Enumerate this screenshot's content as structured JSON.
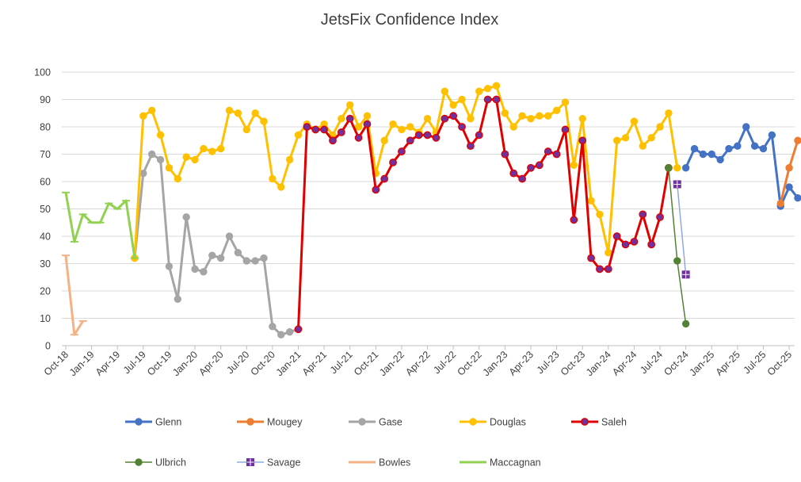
{
  "chart_data": {
    "type": "line",
    "title": "JetsFix Confidence Index",
    "xlabel": "",
    "ylabel": "",
    "ylim": [
      0,
      100
    ],
    "yticks": [
      0,
      10,
      20,
      30,
      40,
      50,
      60,
      70,
      80,
      90,
      100
    ],
    "x_start": "Oct-18",
    "x_ticks": [
      "Oct-18",
      "Jan-19",
      "Apr-19",
      "Jul-19",
      "Oct-19",
      "Jan-20",
      "Apr-20",
      "Jul-20",
      "Oct-20",
      "Jan-21",
      "Apr-21",
      "Jul-21",
      "Oct-21",
      "Jan-22",
      "Apr-22",
      "Jul-22",
      "Oct-22",
      "Jan-23",
      "Apr-23",
      "Jul-23",
      "Oct-23",
      "Jan-24",
      "Apr-24",
      "Jul-24",
      "Oct-24",
      "Jan-25",
      "Apr-25",
      "Jul-25",
      "Oct-25"
    ],
    "grid": "horizontal",
    "legend_position": "bottom",
    "series": [
      {
        "name": "Glenn",
        "color": "#4472C4",
        "marker": "circle",
        "points": [
          [
            "Oct-24",
            65
          ],
          [
            "Nov-24",
            72
          ],
          [
            "Dec-24",
            70
          ],
          [
            "Jan-25",
            70
          ],
          [
            "Feb-25",
            68
          ],
          [
            "Mar-25",
            72
          ],
          [
            "Apr-25",
            73
          ],
          [
            "May-25",
            80
          ],
          [
            "Jun-25",
            73
          ],
          [
            "Jul-25",
            72
          ],
          [
            "Aug-25",
            77
          ],
          [
            "Sep-25",
            51
          ],
          [
            "Oct-25",
            58
          ],
          [
            "Nov-25",
            54
          ]
        ]
      },
      {
        "name": "Mougey",
        "color": "#ED7D31",
        "marker": "circle",
        "points": [
          [
            "Sep-25",
            52
          ],
          [
            "Oct-25",
            65
          ],
          [
            "Nov-25",
            75
          ]
        ]
      },
      {
        "name": "Gase",
        "color": "#A5A5A5",
        "marker": "circle",
        "points": [
          [
            "Jun-19",
            32
          ],
          [
            "Jul-19",
            63
          ],
          [
            "Aug-19",
            70
          ],
          [
            "Sep-19",
            68
          ],
          [
            "Oct-19",
            29
          ],
          [
            "Nov-19",
            17
          ],
          [
            "Dec-19",
            47
          ],
          [
            "Jan-20",
            28
          ],
          [
            "Feb-20",
            27
          ],
          [
            "Mar-20",
            33
          ],
          [
            "Apr-20",
            32
          ],
          [
            "May-20",
            40
          ],
          [
            "Jun-20",
            34
          ],
          [
            "Jul-20",
            31
          ],
          [
            "Aug-20",
            31
          ],
          [
            "Sep-20",
            32
          ],
          [
            "Oct-20",
            7
          ],
          [
            "Nov-20",
            4
          ],
          [
            "Dec-20",
            5
          ],
          [
            "Jan-21",
            6
          ]
        ]
      },
      {
        "name": "Douglas",
        "color": "#FFC000",
        "marker": "circle",
        "points": [
          [
            "Jun-19",
            32
          ],
          [
            "Jul-19",
            84
          ],
          [
            "Aug-19",
            86
          ],
          [
            "Sep-19",
            77
          ],
          [
            "Oct-19",
            65
          ],
          [
            "Nov-19",
            61
          ],
          [
            "Dec-19",
            69
          ],
          [
            "Jan-20",
            68
          ],
          [
            "Feb-20",
            72
          ],
          [
            "Mar-20",
            71
          ],
          [
            "Apr-20",
            72
          ],
          [
            "May-20",
            86
          ],
          [
            "Jun-20",
            85
          ],
          [
            "Jul-20",
            79
          ],
          [
            "Aug-20",
            85
          ],
          [
            "Sep-20",
            82
          ],
          [
            "Oct-20",
            61
          ],
          [
            "Nov-20",
            58
          ],
          [
            "Dec-20",
            68
          ],
          [
            "Jan-21",
            77
          ],
          [
            "Feb-21",
            81
          ],
          [
            "Mar-21",
            79
          ],
          [
            "Apr-21",
            81
          ],
          [
            "May-21",
            77
          ],
          [
            "Jun-21",
            83
          ],
          [
            "Jul-21",
            88
          ],
          [
            "Aug-21",
            80
          ],
          [
            "Sep-21",
            84
          ],
          [
            "Oct-21",
            63
          ],
          [
            "Nov-21",
            75
          ],
          [
            "Dec-21",
            81
          ],
          [
            "Jan-22",
            79
          ],
          [
            "Feb-22",
            80
          ],
          [
            "Mar-22",
            78
          ],
          [
            "Apr-22",
            83
          ],
          [
            "May-22",
            78
          ],
          [
            "Jun-22",
            93
          ],
          [
            "Jul-22",
            88
          ],
          [
            "Aug-22",
            90
          ],
          [
            "Sep-22",
            83
          ],
          [
            "Oct-22",
            93
          ],
          [
            "Nov-22",
            94
          ],
          [
            "Dec-22",
            95
          ],
          [
            "Jan-23",
            85
          ],
          [
            "Feb-23",
            80
          ],
          [
            "Mar-23",
            84
          ],
          [
            "Apr-23",
            83
          ],
          [
            "May-23",
            84
          ],
          [
            "Jun-23",
            84
          ],
          [
            "Jul-23",
            86
          ],
          [
            "Aug-23",
            89
          ],
          [
            "Sep-23",
            66
          ],
          [
            "Oct-23",
            83
          ],
          [
            "Nov-23",
            53
          ],
          [
            "Dec-23",
            48
          ],
          [
            "Jan-24",
            34
          ],
          [
            "Feb-24",
            75
          ],
          [
            "Mar-24",
            76
          ],
          [
            "Apr-24",
            82
          ],
          [
            "May-24",
            73
          ],
          [
            "Jun-24",
            76
          ],
          [
            "Jul-24",
            80
          ],
          [
            "Aug-24",
            85
          ],
          [
            "Sep-24",
            65
          ]
        ]
      },
      {
        "name": "Saleh",
        "color": "#E00000",
        "marker": "circle-purple",
        "points": [
          [
            "Jan-21",
            6
          ],
          [
            "Feb-21",
            80
          ],
          [
            "Mar-21",
            79
          ],
          [
            "Apr-21",
            79
          ],
          [
            "May-21",
            75
          ],
          [
            "Jun-21",
            78
          ],
          [
            "Jul-21",
            83
          ],
          [
            "Aug-21",
            76
          ],
          [
            "Sep-21",
            81
          ],
          [
            "Oct-21",
            57
          ],
          [
            "Nov-21",
            61
          ],
          [
            "Dec-21",
            67
          ],
          [
            "Jan-22",
            71
          ],
          [
            "Feb-22",
            75
          ],
          [
            "Mar-22",
            77
          ],
          [
            "Apr-22",
            77
          ],
          [
            "May-22",
            76
          ],
          [
            "Jun-22",
            83
          ],
          [
            "Jul-22",
            84
          ],
          [
            "Aug-22",
            80
          ],
          [
            "Sep-22",
            73
          ],
          [
            "Oct-22",
            77
          ],
          [
            "Nov-22",
            90
          ],
          [
            "Dec-22",
            90
          ],
          [
            "Jan-23",
            70
          ],
          [
            "Feb-23",
            63
          ],
          [
            "Mar-23",
            61
          ],
          [
            "Apr-23",
            65
          ],
          [
            "May-23",
            66
          ],
          [
            "Jun-23",
            71
          ],
          [
            "Jul-23",
            70
          ],
          [
            "Aug-23",
            79
          ],
          [
            "Sep-23",
            46
          ],
          [
            "Oct-23",
            75
          ],
          [
            "Nov-23",
            32
          ],
          [
            "Dec-23",
            28
          ],
          [
            "Jan-24",
            28
          ],
          [
            "Feb-24",
            40
          ],
          [
            "Mar-24",
            37
          ],
          [
            "Apr-24",
            38
          ],
          [
            "May-24",
            48
          ],
          [
            "Jun-24",
            37
          ],
          [
            "Jul-24",
            47
          ],
          [
            "Aug-24",
            65
          ]
        ]
      },
      {
        "name": "Ulbrich",
        "color": "#548235",
        "marker": "circle",
        "points": [
          [
            "Aug-24",
            65
          ],
          [
            "Sep-24",
            31
          ],
          [
            "Oct-24",
            8
          ]
        ]
      },
      {
        "name": "Savage",
        "color": "#8FAADC",
        "marker": "square-purple",
        "points": [
          [
            "Sep-24",
            59
          ],
          [
            "Oct-24",
            26
          ]
        ]
      },
      {
        "name": "Bowles",
        "color": "#F4B183",
        "marker": "dash",
        "points": [
          [
            "Oct-18",
            33
          ],
          [
            "Nov-18",
            4
          ],
          [
            "Dec-18",
            9
          ]
        ]
      },
      {
        "name": "Maccagnan",
        "color": "#92D050",
        "marker": "dash",
        "points": [
          [
            "Oct-18",
            56
          ],
          [
            "Nov-18",
            38
          ],
          [
            "Dec-18",
            48
          ],
          [
            "Jan-19",
            45
          ],
          [
            "Feb-19",
            45
          ],
          [
            "Mar-19",
            52
          ],
          [
            "Apr-19",
            50
          ],
          [
            "May-19",
            53
          ],
          [
            "Jun-19",
            32
          ]
        ]
      }
    ]
  }
}
